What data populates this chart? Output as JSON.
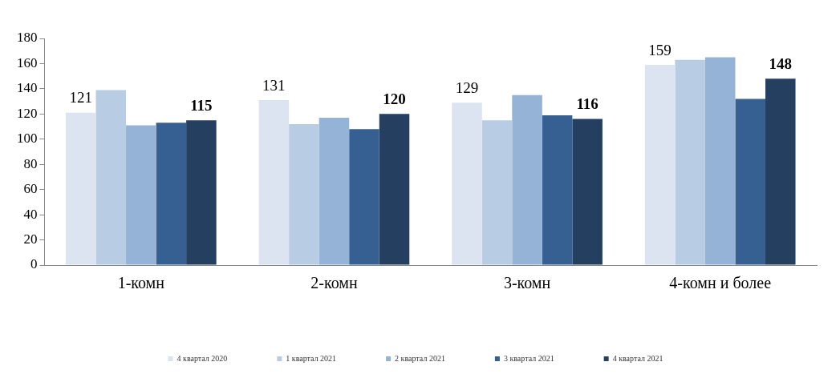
{
  "chart_data": {
    "type": "bar",
    "categories": [
      "1-комн",
      "2-комн",
      "3-комн",
      "4-комн и более"
    ],
    "series": [
      {
        "name": "4 квартал 2020",
        "color": "#dce4f2",
        "values": [
          121,
          131,
          129,
          159
        ],
        "value_labels": [
          "121",
          "131",
          "129",
          "159"
        ]
      },
      {
        "name": "1 квартал 2021",
        "color": "#b8cce4",
        "values": [
          139,
          112,
          115,
          163
        ]
      },
      {
        "name": "2 квартал 2021",
        "color": "#95b3d7",
        "values": [
          111,
          117,
          135,
          165
        ]
      },
      {
        "name": "3 квартал 2021",
        "color": "#366092",
        "values": [
          113,
          108,
          119,
          132
        ]
      },
      {
        "name": "4 квартал 2021",
        "color": "#243f60",
        "values": [
          115,
          120,
          116,
          148
        ],
        "value_labels": [
          "115",
          "120",
          "116",
          "148"
        ]
      }
    ],
    "ylim": [
      0,
      180
    ],
    "yticks": [
      0,
      20,
      40,
      60,
      80,
      100,
      120,
      140,
      160,
      180
    ],
    "grid": false,
    "legend": "bottom"
  }
}
